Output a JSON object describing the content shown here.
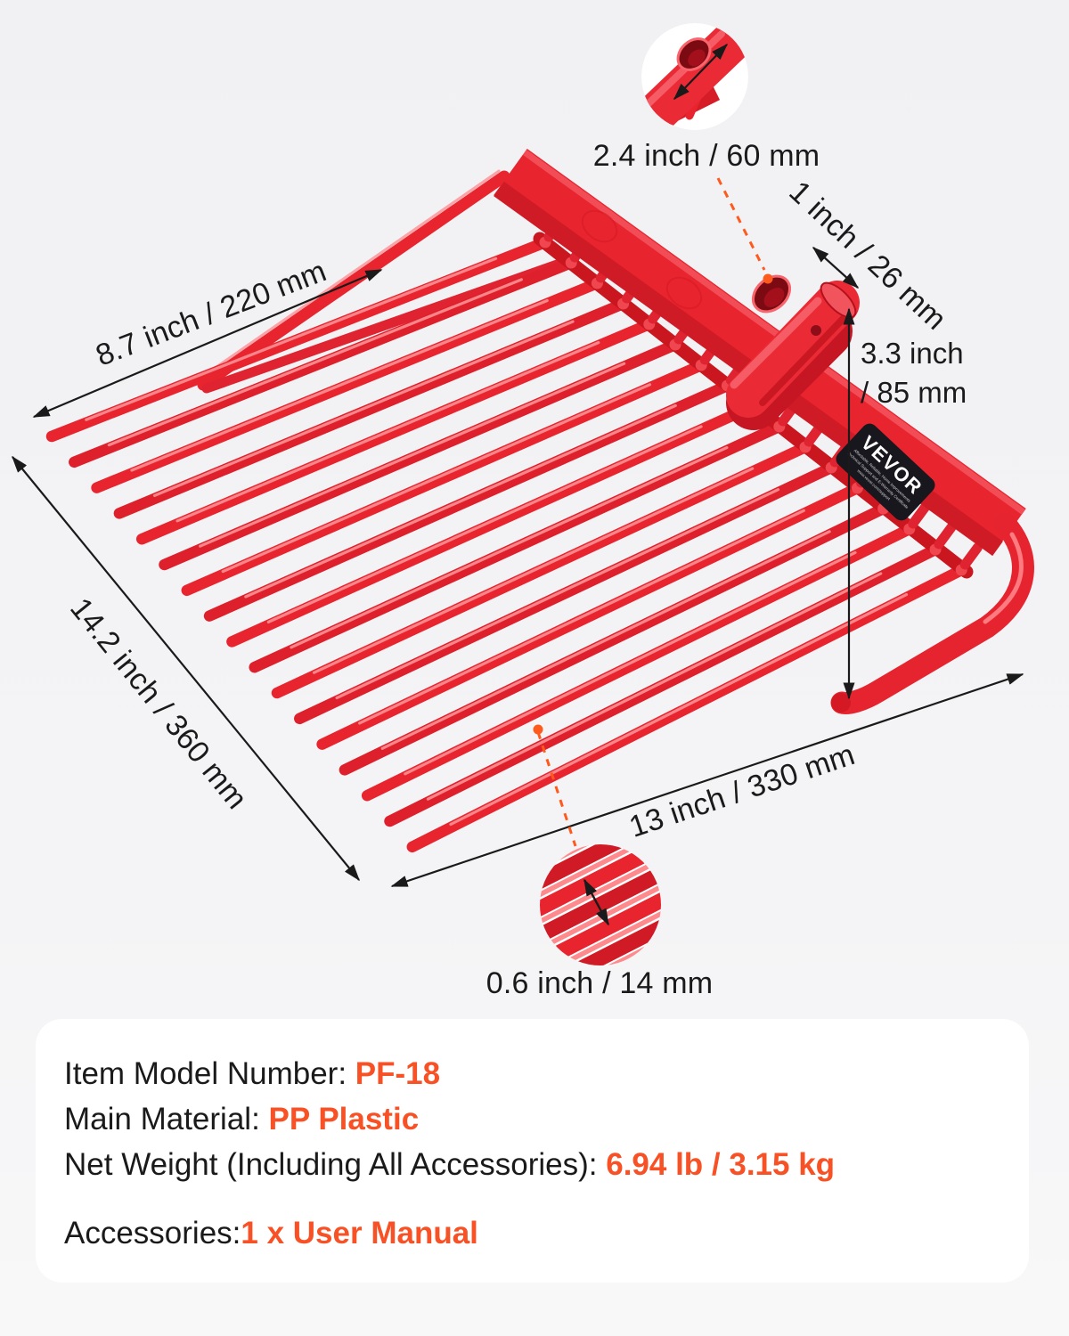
{
  "dimensions": {
    "top_edge": "8.7 inch / 220 mm",
    "side_length": "14.2 inch / 360 mm",
    "bottom_edge": "13 inch / 330 mm",
    "socket_opening": "2.4 inch / 60 mm",
    "socket_diameter": "1 inch / 26 mm",
    "socket_height": {
      "line1": "3.3 inch",
      "line2": "/ 85 mm"
    },
    "tine_spacing": "0.6 inch / 14 mm"
  },
  "label": {
    "brand": "VEVOR",
    "tagline1": "Affordable, Reliable, Home Improvements",
    "tagline2": "Technical Support and E-Warranty Certificate",
    "tagline3": "www.vevor.com/support"
  },
  "specs": {
    "model_label": "Item Model Number: ",
    "model_value": "PF-18",
    "material_label": "Main Material: ",
    "material_value": "PP Plastic",
    "weight_label": "Net Weight (Including All Accessories): ",
    "weight_value": "6.94 lb / 3.15 kg",
    "accessories_label": "Accessories:",
    "accessories_value": "1 x User Manual"
  },
  "colors": {
    "product_red": "#E8242F",
    "product_red_dark": "#C9161F",
    "accent_orange_text": "#F75125",
    "callout_orange": "#FF5A1E",
    "text_dark": "#1A1A1A",
    "label_black": "#17171D",
    "background": "#F2F2F3",
    "card_white": "#FFFFFF"
  }
}
